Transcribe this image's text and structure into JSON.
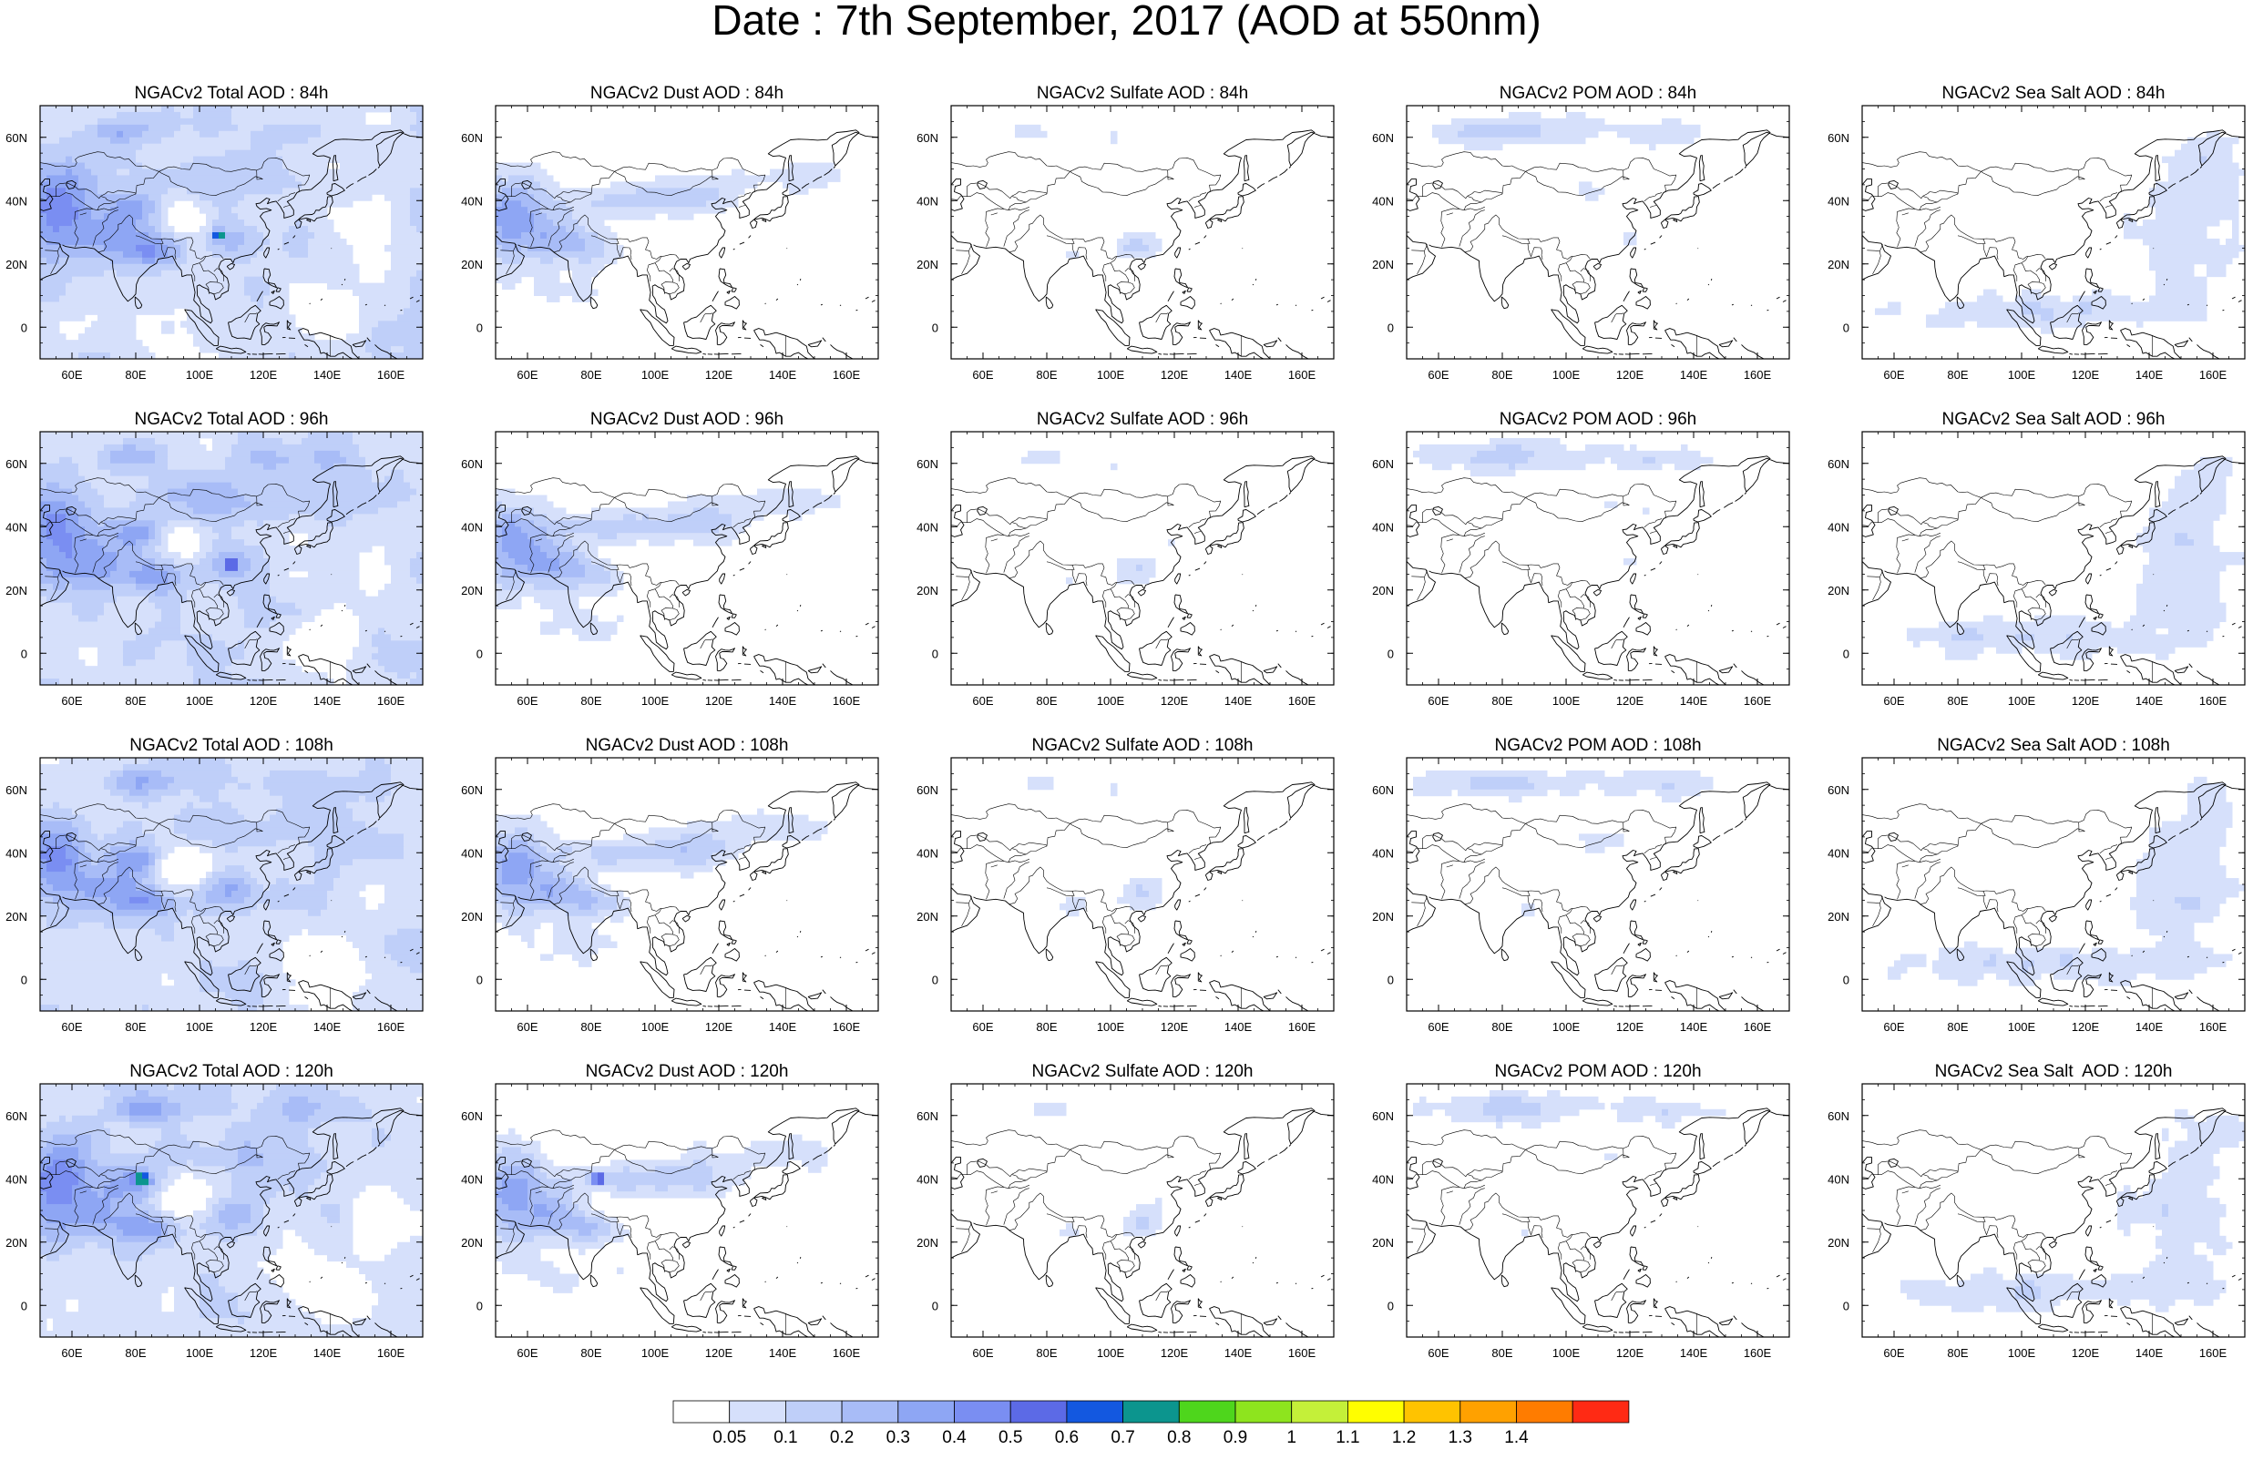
{
  "title": "Date : 7th September, 2017 (AOD at 550nm)",
  "map": {
    "lon_range": [
      50,
      170
    ],
    "lat_range": [
      -10,
      70
    ],
    "x_ticks": [
      {
        "value": 60,
        "label": "60E"
      },
      {
        "value": 80,
        "label": "80E"
      },
      {
        "value": 100,
        "label": "100E"
      },
      {
        "value": 120,
        "label": "120E"
      },
      {
        "value": 140,
        "label": "140E"
      },
      {
        "value": 160,
        "label": "160E"
      }
    ],
    "y_ticks": [
      {
        "value": 60,
        "label": "60N"
      },
      {
        "value": 40,
        "label": "40N"
      },
      {
        "value": 20,
        "label": "20N"
      },
      {
        "value": 0,
        "label": "0"
      }
    ]
  },
  "rows": [
    {
      "forecast_hour": "84h",
      "panels": [
        {
          "variable": "total",
          "title": "NGACv2 Total AOD : 84h"
        },
        {
          "variable": "dust",
          "title": "NGACv2 Dust AOD : 84h"
        },
        {
          "variable": "sulfate",
          "title": "NGACv2 Sulfate AOD : 84h"
        },
        {
          "variable": "pom",
          "title": "NGACv2 POM AOD : 84h"
        },
        {
          "variable": "seasalt",
          "title": "NGACv2 Sea Salt AOD : 84h"
        }
      ]
    },
    {
      "forecast_hour": "96h",
      "panels": [
        {
          "variable": "total",
          "title": "NGACv2 Total AOD : 96h"
        },
        {
          "variable": "dust",
          "title": "NGACv2 Dust AOD : 96h"
        },
        {
          "variable": "sulfate",
          "title": "NGACv2 Sulfate AOD : 96h"
        },
        {
          "variable": "pom",
          "title": "NGACv2 POM AOD : 96h"
        },
        {
          "variable": "seasalt",
          "title": "NGACv2 Sea Salt AOD : 96h"
        }
      ]
    },
    {
      "forecast_hour": "108h",
      "panels": [
        {
          "variable": "total",
          "title": "NGACv2 Total AOD : 108h"
        },
        {
          "variable": "dust",
          "title": "NGACv2 Dust AOD : 108h"
        },
        {
          "variable": "sulfate",
          "title": "NGACv2 Sulfate AOD : 108h"
        },
        {
          "variable": "pom",
          "title": "NGACv2 POM AOD : 108h"
        },
        {
          "variable": "seasalt",
          "title": "NGACv2 Sea Salt AOD : 108h"
        }
      ]
    },
    {
      "forecast_hour": "120h",
      "panels": [
        {
          "variable": "total",
          "title": "NGACv2 Total AOD : 120h"
        },
        {
          "variable": "dust",
          "title": "NGACv2 Dust AOD : 120h"
        },
        {
          "variable": "sulfate",
          "title": "NGACv2 Sulfate AOD : 120h"
        },
        {
          "variable": "pom",
          "title": "NGACv2 POM AOD : 120h"
        },
        {
          "variable": "seasalt",
          "title": "NGACv2 Sea Salt  AOD : 120h"
        }
      ]
    }
  ],
  "colorbar": {
    "bins": [
      {
        "color": "#ffffff"
      },
      {
        "color": "#d6e0fb",
        "label": "0.05"
      },
      {
        "color": "#bfcff9",
        "label": "0.1"
      },
      {
        "color": "#a8bcf7",
        "label": "0.2"
      },
      {
        "color": "#8ea6f4",
        "label": "0.3"
      },
      {
        "color": "#7a8ef2",
        "label": "0.4"
      },
      {
        "color": "#5c6ae6",
        "label": "0.5"
      },
      {
        "color": "#1358e0",
        "label": "0.6"
      },
      {
        "color": "#0c958e",
        "label": "0.7"
      },
      {
        "color": "#4ed61c",
        "label": "0.8"
      },
      {
        "color": "#8ee41e",
        "label": "0.9"
      },
      {
        "color": "#c4f039",
        "label": "1"
      },
      {
        "color": "#fffe00",
        "label": "1.1"
      },
      {
        "color": "#ffc300",
        "label": "1.2"
      },
      {
        "color": "#ffa100",
        "label": "1.3"
      },
      {
        "color": "#ff7c00",
        "label": "1.4"
      },
      {
        "color": "#ff2a14"
      }
    ]
  }
}
